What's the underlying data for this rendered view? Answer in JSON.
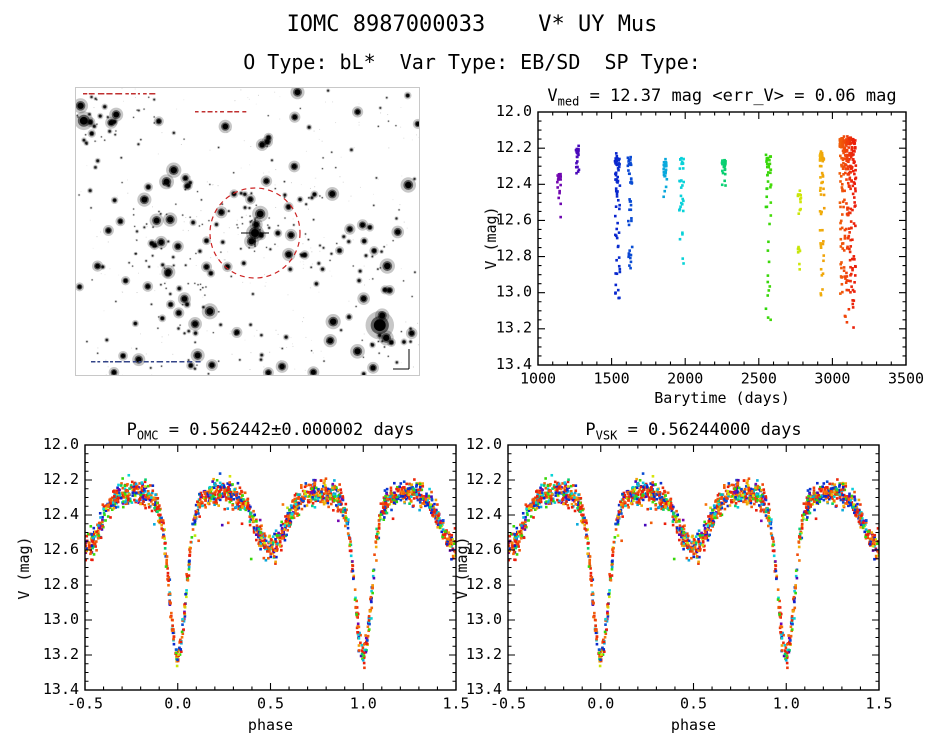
{
  "header": {
    "title": "IOMC 8987000033    V* UY Mus",
    "subtitle": "O Type: bL*  Var Type: EB/SD  SP Type:",
    "source_id": "8987000033",
    "object_name": "V* UY Mus",
    "o_type": "bL*",
    "var_type": "EB/SD",
    "sp_type": ""
  },
  "finder": {
    "description": "grayscale star field with red dashed circle marking target",
    "circle_color": "#cc2222"
  },
  "chart_data": [
    {
      "id": "lightcurve_vs_time",
      "type": "scatter",
      "title": {
        "main": "V",
        "sub": "med",
        "rest": " = 12.37 mag <err_V> = 0.06 mag"
      },
      "v_med": 12.37,
      "err_v": 0.06,
      "xlabel": "Barytime (days)",
      "ylabel": "V (mag)",
      "xlim": [
        1000,
        3500
      ],
      "ylim": [
        12.0,
        13.4
      ],
      "y_axis_reversed_mag": true,
      "xticks": [
        1000,
        1500,
        2000,
        2500,
        3000,
        3500
      ],
      "xtick_labels": [
        "1000",
        "1500",
        "2000",
        "2500",
        "3000",
        "3500"
      ],
      "yticks": [
        12.0,
        12.2,
        12.4,
        12.6,
        12.8,
        13.0,
        13.2,
        13.4
      ],
      "ytick_labels": [
        "12.0",
        "12.2",
        "12.4",
        "12.6",
        "12.8",
        "13.0",
        "13.2",
        "13.4"
      ],
      "x_minor": 100,
      "y_minor": 0.05,
      "color_scale": "rainbow by barytime: purple ~1100 d to red ~3150 d",
      "clusters": [
        {
          "t": 1140,
          "dt": 15,
          "n": 18,
          "v_bright": 12.35,
          "v_faint": 12.56
        },
        {
          "t": 1270,
          "dt": 12,
          "n": 22,
          "v_bright": 12.21,
          "v_faint": 12.33
        },
        {
          "t": 1540,
          "dt": 18,
          "n": 60,
          "v_bright": 12.26,
          "v_faint": 13.05
        },
        {
          "t": 1625,
          "dt": 15,
          "n": 40,
          "v_bright": 12.27,
          "v_faint": 12.92
        },
        {
          "t": 1865,
          "dt": 12,
          "n": 25,
          "v_bright": 12.29,
          "v_faint": 12.48
        },
        {
          "t": 1975,
          "dt": 15,
          "n": 30,
          "v_bright": 12.27,
          "v_faint": 12.85
        },
        {
          "t": 2260,
          "dt": 15,
          "n": 26,
          "v_bright": 12.28,
          "v_faint": 12.42
        },
        {
          "t": 2565,
          "dt": 18,
          "n": 48,
          "v_bright": 12.25,
          "v_faint": 13.16
        },
        {
          "t": 2775,
          "dt": 12,
          "n": 20,
          "v_bright": 12.45,
          "v_faint": 12.88
        },
        {
          "t": 2930,
          "dt": 15,
          "n": 48,
          "v_bright": 12.24,
          "v_faint": 13.1
        },
        {
          "t": 3105,
          "dt": 55,
          "n": 280,
          "v_bright": 12.16,
          "v_faint": 13.18
        }
      ]
    },
    {
      "id": "phase_folded_omc",
      "type": "scatter",
      "title": {
        "main": "P",
        "sub": "OMC",
        "rest": " = 0.562442±0.000002 days"
      },
      "period_days": 0.562442,
      "period_err_days": 2e-06,
      "xlabel": "phase",
      "ylabel": "V (mag)",
      "xlim": [
        -0.5,
        1.5
      ],
      "ylim": [
        12.0,
        13.4
      ],
      "xticks": [
        -0.5,
        0.0,
        0.5,
        1.0,
        1.5
      ],
      "xtick_labels": [
        "-0.5",
        "0.0",
        "0.5",
        "1.0",
        "1.5"
      ],
      "yticks": [
        12.0,
        12.2,
        12.4,
        12.6,
        12.8,
        13.0,
        13.2,
        13.4
      ],
      "ytick_labels": [
        "12.0",
        "12.2",
        "12.4",
        "12.6",
        "12.8",
        "13.0",
        "13.2",
        "13.4"
      ],
      "x_minor": 0.1,
      "y_minor": 0.05,
      "n_points": 1900,
      "model": {
        "base_mag": 12.295,
        "ellipsoidal_amp": 0.025,
        "primary_minimum_phase": 0.0,
        "primary_depth": 0.88,
        "primary_sigma": 0.045,
        "secondary_minimum_phase": 0.5,
        "secondary_depth": 0.27,
        "secondary_sigma": 0.075,
        "primary_min_mag": 13.2,
        "secondary_min_mag": 12.59,
        "max_brightness_mag": 12.27,
        "noise": 0.035
      }
    },
    {
      "id": "phase_folded_vsk",
      "type": "scatter",
      "title": {
        "main": "P",
        "sub": "VSK",
        "rest": " = 0.56244000 days"
      },
      "period_days": 0.56244,
      "xlabel": "phase",
      "ylabel": "V (mag)",
      "xlim": [
        -0.5,
        1.5
      ],
      "ylim": [
        12.0,
        13.4
      ],
      "xticks": [
        -0.5,
        0.0,
        0.5,
        1.0,
        1.5
      ],
      "xtick_labels": [
        "-0.5",
        "0.0",
        "0.5",
        "1.0",
        "1.5"
      ],
      "yticks": [
        12.0,
        12.2,
        12.4,
        12.6,
        12.8,
        13.0,
        13.2,
        13.4
      ],
      "ytick_labels": [
        "12.0",
        "12.2",
        "12.4",
        "12.6",
        "12.8",
        "13.0",
        "13.2",
        "13.4"
      ],
      "x_minor": 0.1,
      "y_minor": 0.05,
      "n_points": 1900,
      "model": {
        "base_mag": 12.295,
        "ellipsoidal_amp": 0.025,
        "primary_minimum_phase": 0.0,
        "primary_depth": 0.88,
        "primary_sigma": 0.045,
        "secondary_minimum_phase": 0.5,
        "secondary_depth": 0.27,
        "secondary_sigma": 0.075,
        "primary_min_mag": 13.2,
        "secondary_min_mag": 12.59,
        "max_brightness_mag": 12.27,
        "noise": 0.035
      }
    }
  ]
}
